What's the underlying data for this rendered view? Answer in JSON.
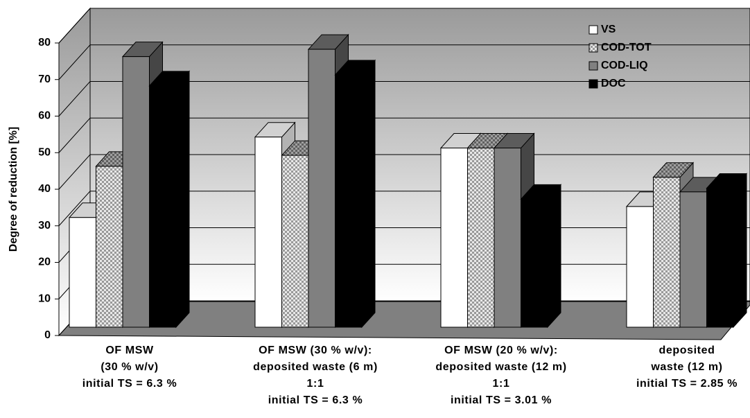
{
  "chart_data": {
    "type": "bar3d",
    "y_label": "Degree of reduction [%]",
    "categories": [
      [
        "OF MSW",
        "(30 % w/v)",
        "initial TS = 6.3 %"
      ],
      [
        "OF MSW (30 % w/v):",
        "deposited waste (6 m)",
        "1:1",
        "initial TS = 6.3 %"
      ],
      [
        "OF MSW (20 % w/v):",
        "deposited waste (12 m)",
        "1:1",
        "initial TS = 3.01 %"
      ],
      [
        "deposited",
        "waste (12 m)",
        "initial TS = 2.85 %"
      ]
    ],
    "series": [
      {
        "name": "VS",
        "color": "#ffffff",
        "values": [
          30,
          52,
          49,
          33
        ]
      },
      {
        "name": "COD-TOT",
        "color": "#c0c0c0",
        "pattern": "checker",
        "values": [
          44,
          47,
          49,
          41
        ]
      },
      {
        "name": "COD-LIQ",
        "color": "#808080",
        "values": [
          74,
          76,
          49,
          37
        ]
      },
      {
        "name": "DOC",
        "color": "#000000",
        "values": [
          66,
          69,
          35,
          38
        ]
      }
    ],
    "ylim": [
      0,
      80
    ],
    "yticks": [
      0,
      10,
      20,
      30,
      40,
      50,
      60,
      70,
      80
    ],
    "grid": true,
    "legend": "upper right"
  }
}
